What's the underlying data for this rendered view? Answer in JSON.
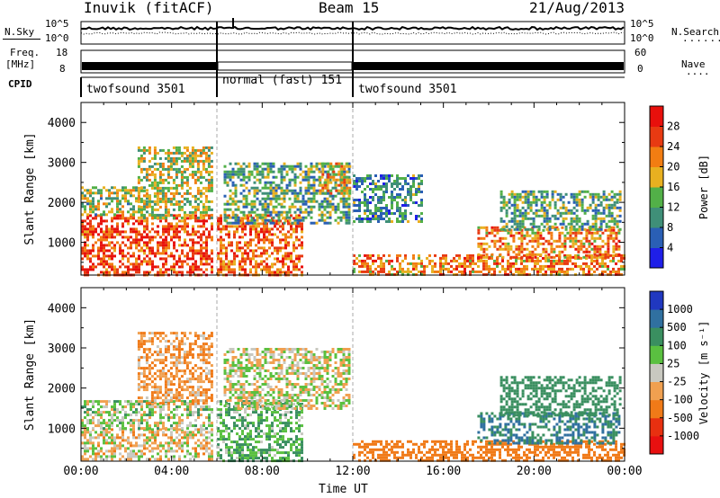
{
  "header": {
    "station": "Inuvik (fitACF)",
    "beam": "Beam 15",
    "date": "21/Aug/2013"
  },
  "summary_panels": {
    "nsky_label": "N.Sky",
    "nsky_ticks": [
      "10^5",
      "10^0"
    ],
    "nsearch_label": "N.Search",
    "nsearch_ticks": [
      "10^5",
      "10^0"
    ],
    "freq_label": "Freq.",
    "freq_unit": "[MHz]",
    "freq_ticks": [
      "18",
      "8"
    ],
    "nave_label": "Nave",
    "nave_ticks": [
      "60",
      "0"
    ],
    "cpid_label": "CPID",
    "cpid_segments": [
      {
        "label": "twofsound 3501",
        "start_hour": 0,
        "end_hour": 6.0
      },
      {
        "label": "normal (fast) 151",
        "start_hour": 6.0,
        "end_hour": 12.0
      },
      {
        "label": "twofsound 3501",
        "start_hour": 12.0,
        "end_hour": 24.0
      }
    ]
  },
  "chart_data": [
    {
      "type": "heatmap",
      "title": "",
      "ylabel": "Slant Range [km]",
      "xlabel": "Time UT",
      "xlim": [
        0,
        24
      ],
      "ylim": [
        180,
        4500
      ],
      "x_ticks": [
        "00:00",
        "04:00",
        "08:00",
        "12:00",
        "16:00",
        "20:00",
        "00:00"
      ],
      "y_ticks": [
        1000,
        2000,
        3000,
        4000
      ],
      "colorbar": {
        "label": "Power [dB]",
        "ticks": [
          4,
          8,
          12,
          16,
          20,
          24,
          28
        ],
        "colors": [
          "#1f1fe8",
          "#2a5fb5",
          "#3f8f78",
          "#52b048",
          "#e8b020",
          "#f27d12",
          "#e83a12",
          "#e8100c"
        ]
      },
      "echo_regions": [
        {
          "t0": 0.0,
          "t1": 5.8,
          "r0": 200,
          "r1": 1700,
          "value": 26
        },
        {
          "t0": 0.0,
          "t1": 3.0,
          "r0": 1700,
          "r1": 2400,
          "value": 14
        },
        {
          "t0": 2.5,
          "t1": 5.8,
          "r0": 1600,
          "r1": 3400,
          "value": 16
        },
        {
          "t0": 6.0,
          "t1": 9.8,
          "r0": 200,
          "r1": 1700,
          "value": 24
        },
        {
          "t0": 6.3,
          "t1": 11.9,
          "r0": 1500,
          "r1": 3000,
          "value": 12
        },
        {
          "t0": 10.5,
          "t1": 11.9,
          "r0": 2200,
          "r1": 3000,
          "value": 20
        },
        {
          "t0": 12.0,
          "t1": 15.0,
          "r0": 1500,
          "r1": 2700,
          "value": 10
        },
        {
          "t0": 12.0,
          "t1": 24.0,
          "r0": 200,
          "r1": 700,
          "value": 22
        },
        {
          "t0": 17.5,
          "t1": 23.8,
          "r0": 600,
          "r1": 1400,
          "value": 22
        },
        {
          "t0": 18.5,
          "t1": 23.8,
          "r0": 1300,
          "r1": 2300,
          "value": 12
        }
      ]
    },
    {
      "type": "heatmap",
      "title": "",
      "ylabel": "Slant Range [km]",
      "xlabel": "Time UT",
      "xlim": [
        0,
        24
      ],
      "ylim": [
        180,
        4500
      ],
      "x_ticks": [
        "00:00",
        "04:00",
        "08:00",
        "12:00",
        "16:00",
        "20:00",
        "00:00"
      ],
      "y_ticks": [
        1000,
        2000,
        3000,
        4000
      ],
      "colorbar": {
        "label": "Velocity [m s⁻¹]",
        "ticks": [
          "1000",
          "500",
          "100",
          "25",
          "-25",
          "-100",
          "-500",
          "-1000"
        ],
        "colors": [
          "#2038c0",
          "#3070a0",
          "#3a8f60",
          "#5ac040",
          "#c8c8c0",
          "#f0a050",
          "#f07a18",
          "#e83010",
          "#e81010"
        ]
      },
      "echo_regions": [
        {
          "t0": 0.0,
          "t1": 5.8,
          "r0": 200,
          "r1": 1000,
          "value": -25
        },
        {
          "t0": 0.0,
          "t1": 5.8,
          "r0": 1000,
          "r1": 1700,
          "value": 25
        },
        {
          "t0": 2.5,
          "t1": 5.8,
          "r0": 1600,
          "r1": 3400,
          "value": -100
        },
        {
          "t0": 6.0,
          "t1": 9.8,
          "r0": 200,
          "r1": 1700,
          "value": 100
        },
        {
          "t0": 6.3,
          "t1": 11.9,
          "r0": 1500,
          "r1": 3000,
          "value": 0
        },
        {
          "t0": 12.0,
          "t1": 24.0,
          "r0": 200,
          "r1": 700,
          "value": -300
        },
        {
          "t0": 17.5,
          "t1": 23.8,
          "r0": 600,
          "r1": 1400,
          "value": 500
        },
        {
          "t0": 18.5,
          "t1": 23.8,
          "r0": 1300,
          "r1": 2300,
          "value": 200
        }
      ]
    }
  ]
}
